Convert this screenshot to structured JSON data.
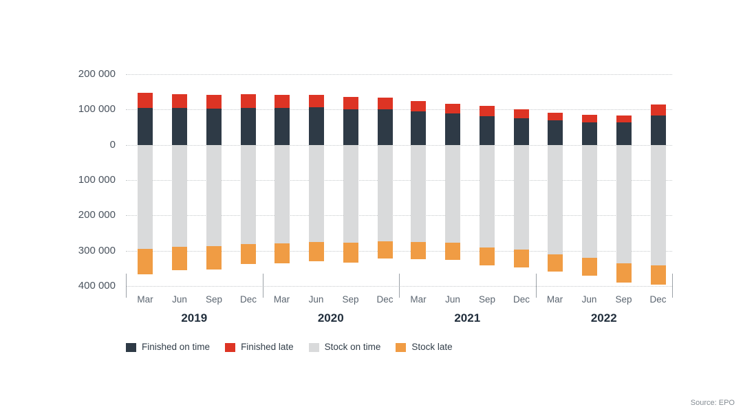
{
  "chart_data": {
    "type": "bar",
    "variant": "diverging-stacked-column",
    "title": "",
    "grid": true,
    "legend_position": "bottom-left",
    "source": "Source: EPO",
    "x_axis": {
      "years": [
        "2019",
        "2020",
        "2021",
        "2022"
      ],
      "months_per_year": [
        "Mar",
        "Jun",
        "Sep",
        "Dec"
      ]
    },
    "y_axis": {
      "tick_labels": [
        "200 000",
        "100 000",
        "0",
        "100 000",
        "200 000",
        "300 000",
        "400 000"
      ],
      "tick_values": [
        200000,
        100000,
        0,
        -100000,
        -200000,
        -300000,
        -400000
      ],
      "ylim": [
        -400000,
        200000
      ],
      "note": "values below zero plotted downward as stock; magnitudes shown as positive labels"
    },
    "categories": [
      "Mar 2019",
      "Jun 2019",
      "Sep 2019",
      "Dec 2019",
      "Mar 2020",
      "Jun 2020",
      "Sep 2020",
      "Dec 2020",
      "Mar 2021",
      "Jun 2021",
      "Sep 2021",
      "Dec 2021",
      "Mar 2022",
      "Jun 2022",
      "Sep 2022",
      "Dec 2022"
    ],
    "series": [
      {
        "name": "Finished on time",
        "color": "#2e3a46",
        "direction": "up",
        "values": [
          104000,
          104000,
          103000,
          104000,
          104000,
          106000,
          101000,
          100000,
          95000,
          90000,
          82000,
          75000,
          69000,
          64000,
          63000,
          84000
        ]
      },
      {
        "name": "Finished late",
        "color": "#dd3424",
        "direction": "up",
        "values": [
          44000,
          40000,
          39000,
          39000,
          37000,
          36000,
          35000,
          34000,
          29000,
          27000,
          28000,
          25000,
          22000,
          21000,
          20000,
          31000
        ]
      },
      {
        "name": "Stock on time",
        "color": "#d9dadb",
        "direction": "down",
        "values": [
          295000,
          289000,
          287000,
          281000,
          280000,
          276000,
          278000,
          273000,
          276000,
          277000,
          291000,
          297000,
          310000,
          320000,
          335000,
          342000
        ]
      },
      {
        "name": "Stock late",
        "color": "#f09c44",
        "direction": "down",
        "values": [
          72000,
          67000,
          66000,
          57000,
          55000,
          55000,
          55000,
          50000,
          49000,
          50000,
          50000,
          51000,
          50000,
          51000,
          55000,
          55000
        ]
      }
    ]
  }
}
